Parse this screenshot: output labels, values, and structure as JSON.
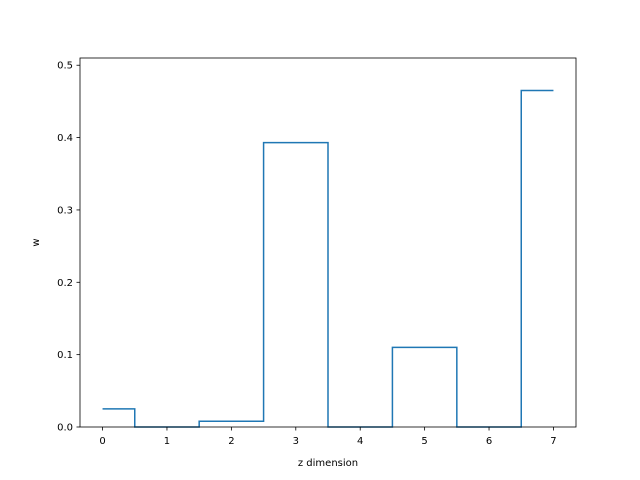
{
  "chart_data": {
    "type": "line",
    "drawstyle": "steps-mid",
    "title": "",
    "xlabel": "z dimension",
    "ylabel": "w",
    "x": [
      0,
      1,
      2,
      3,
      4,
      5,
      6,
      7
    ],
    "series": [
      {
        "values": [
          0.025,
          0.0,
          0.008,
          0.393,
          0.0,
          0.11,
          0.0,
          0.465
        ],
        "color": "#1f77b4"
      }
    ],
    "xlim": [
      -0.35,
      7.35
    ],
    "ylim": [
      0.0,
      0.51
    ],
    "xticks": [
      0,
      1,
      2,
      3,
      4,
      5,
      6,
      7
    ],
    "xtick_labels": [
      "0",
      "1",
      "2",
      "3",
      "4",
      "5",
      "6",
      "7"
    ],
    "yticks": [
      0.0,
      0.1,
      0.2,
      0.3,
      0.4,
      0.5
    ],
    "ytick_labels": [
      "0.0",
      "0.1",
      "0.2",
      "0.3",
      "0.4",
      "0.5"
    ],
    "grid": false,
    "legend": "none"
  }
}
